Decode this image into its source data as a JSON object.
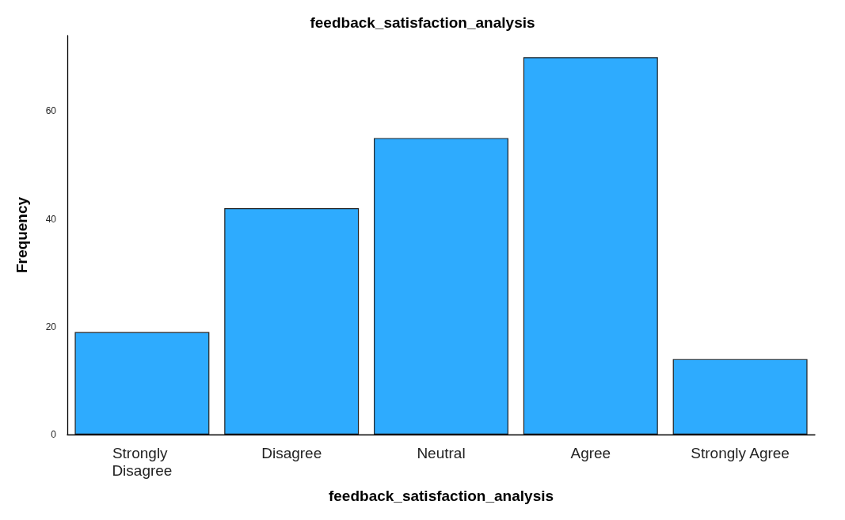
{
  "chart_data": {
    "type": "bar",
    "title": "feedback_satisfaction_analysis",
    "xlabel": "feedback_satisfaction_analysis",
    "ylabel": "Frequency",
    "categories": [
      "Strongly Disagree",
      "Disagree",
      "Neutral",
      "Agree",
      "Strongly Agree"
    ],
    "values": [
      19,
      42,
      55,
      70,
      14
    ],
    "color": "#2eabfe",
    "ylim": [
      0,
      74
    ],
    "yticks": [
      0,
      20,
      40,
      60
    ],
    "grid": false
  }
}
